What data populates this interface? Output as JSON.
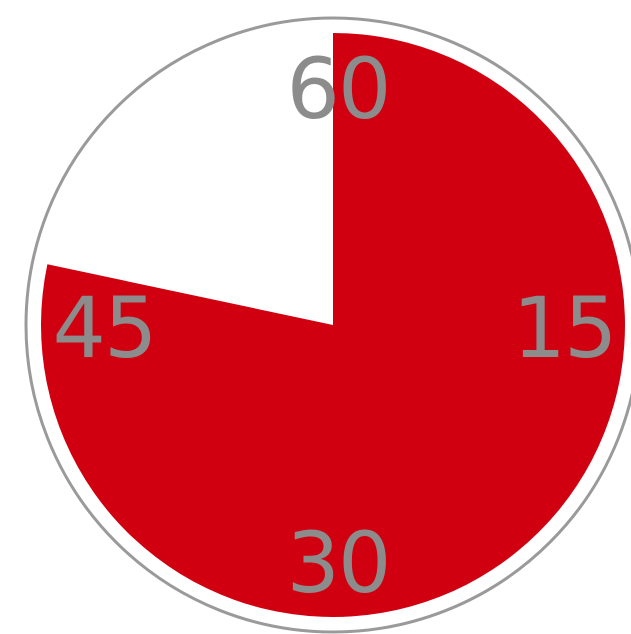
{
  "timer": {
    "total_minutes": 60,
    "remaining_minutes": 47,
    "fill_color": "#d10010",
    "ring_color": "#9a9a9a",
    "label_color": "#8c8c8c",
    "labels": {
      "top": "60",
      "right": "15",
      "bottom": "30",
      "left": "45"
    }
  }
}
